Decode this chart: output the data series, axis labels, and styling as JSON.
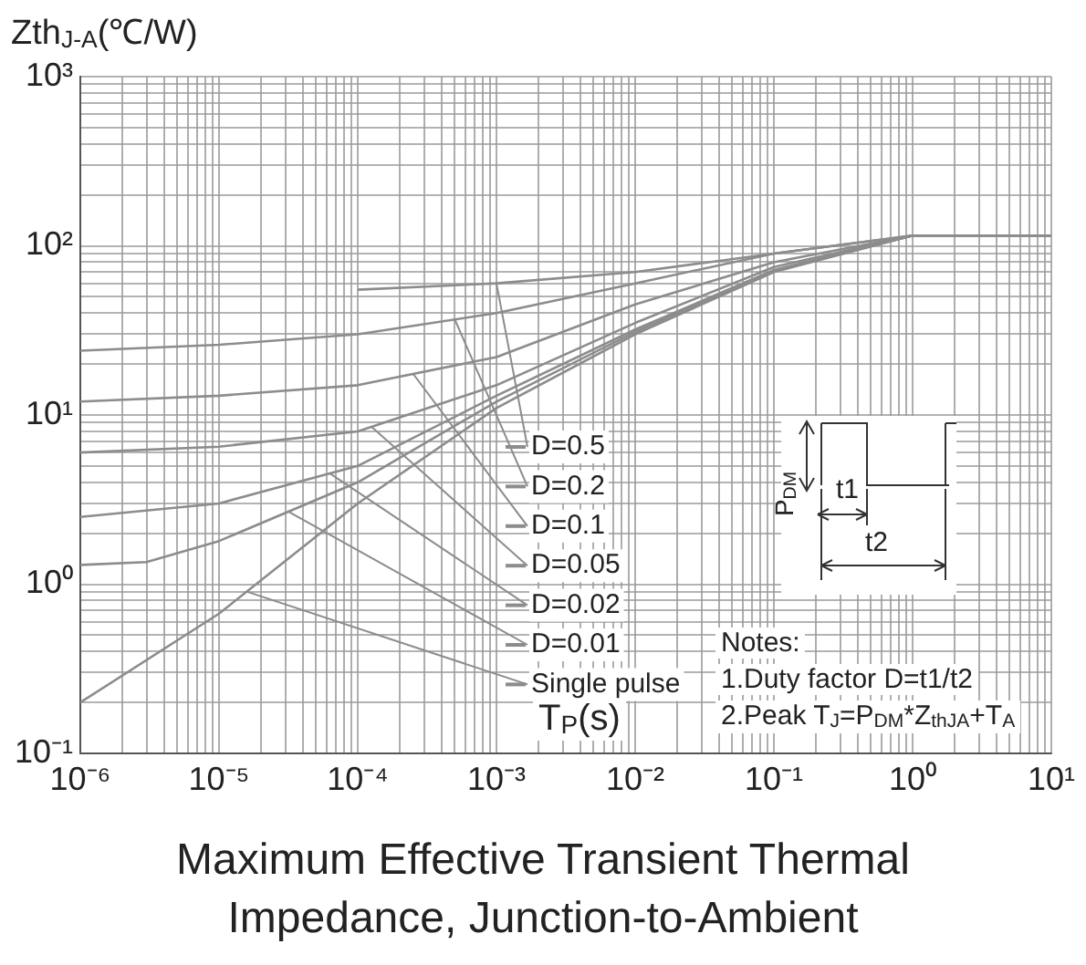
{
  "chart_data": {
    "type": "line",
    "title": "Maximum Effective Transient Thermal Impedance, Junction-to-Ambient",
    "xlabel": "T$_{P}$(s)",
    "ylabel": "Zth$_{J-A}$(℃/W)",
    "log": "xy",
    "grid": true,
    "legend": "bottom",
    "xlim": [
      1e-06,
      10
    ],
    "ylim": [
      0.1,
      1000
    ],
    "xticks": [
      {
        "value": 1e-06,
        "label": "10⁻⁶"
      },
      {
        "value": 2e-06,
        "label": null
      },
      {
        "value": 3e-06,
        "label": null
      },
      {
        "value": 4e-06,
        "label": null
      },
      {
        "value": 5e-06,
        "label": null
      },
      {
        "value": 6e-06,
        "label": null
      },
      {
        "value": 7e-06,
        "label": null
      },
      {
        "value": 8e-06,
        "label": null
      },
      {
        "value": 9e-06,
        "label": null
      },
      {
        "value": 1e-05,
        "label": "10⁻⁵"
      },
      {
        "value": 2e-05,
        "label": null
      },
      {
        "value": 3e-05,
        "label": null
      },
      {
        "value": 4e-05,
        "label": null
      },
      {
        "value": 5e-05,
        "label": null
      },
      {
        "value": 6e-05,
        "label": null
      },
      {
        "value": 7e-05,
        "label": null
      },
      {
        "value": 8e-05,
        "label": null
      },
      {
        "value": 9e-05,
        "label": null
      },
      {
        "value": 0.0001,
        "label": "10⁻⁴"
      },
      {
        "value": 0.0002,
        "label": null
      },
      {
        "value": 0.0003,
        "label": null
      },
      {
        "value": 0.0004,
        "label": null
      },
      {
        "value": 0.0005,
        "label": null
      },
      {
        "value": 0.0006,
        "label": null
      },
      {
        "value": 0.0007,
        "label": null
      },
      {
        "value": 0.0008,
        "label": null
      },
      {
        "value": 0.0009,
        "label": null
      },
      {
        "value": 0.001,
        "label": "10⁻³"
      },
      {
        "value": 0.002,
        "label": null
      },
      {
        "value": 0.003,
        "label": null
      },
      {
        "value": 0.004,
        "label": null
      },
      {
        "value": 0.005,
        "label": null
      },
      {
        "value": 0.006,
        "label": null
      },
      {
        "value": 0.007,
        "label": null
      },
      {
        "value": 0.008,
        "label": null
      },
      {
        "value": 0.009,
        "label": null
      },
      {
        "value": 0.01,
        "label": "10⁻²"
      },
      {
        "value": 0.02,
        "label": null
      },
      {
        "value": 0.03,
        "label": null
      },
      {
        "value": 0.04,
        "label": null
      },
      {
        "value": 0.05,
        "label": null
      },
      {
        "value": 0.06,
        "label": null
      },
      {
        "value": 0.07,
        "label": null
      },
      {
        "value": 0.08,
        "label": null
      },
      {
        "value": 0.09,
        "label": null
      },
      {
        "value": 0.1,
        "label": "10⁻¹"
      },
      {
        "value": 0.2,
        "label": null
      },
      {
        "value": 0.3,
        "label": null
      },
      {
        "value": 0.4,
        "label": null
      },
      {
        "value": 0.5,
        "label": null
      },
      {
        "value": 0.6,
        "label": null
      },
      {
        "value": 0.7,
        "label": null
      },
      {
        "value": 0.8,
        "label": null
      },
      {
        "value": 0.9,
        "label": null
      },
      {
        "value": 1,
        "label": "10⁰"
      },
      {
        "value": 2,
        "label": null
      },
      {
        "value": 3,
        "label": null
      },
      {
        "value": 4,
        "label": null
      },
      {
        "value": 5,
        "label": null
      },
      {
        "value": 6,
        "label": null
      },
      {
        "value": 7,
        "label": null
      },
      {
        "value": 8,
        "label": null
      },
      {
        "value": 9,
        "label": null
      },
      {
        "value": 10,
        "label": "10¹"
      }
    ],
    "yticks": [
      {
        "value": 0.1,
        "label": "10⁻¹"
      },
      {
        "value": 0.2,
        "label": null
      },
      {
        "value": 0.3,
        "label": null
      },
      {
        "value": 0.4,
        "label": null
      },
      {
        "value": 0.5,
        "label": null
      },
      {
        "value": 0.6,
        "label": null
      },
      {
        "value": 0.7,
        "label": null
      },
      {
        "value": 0.8,
        "label": null
      },
      {
        "value": 0.9,
        "label": null
      },
      {
        "value": 1,
        "label": "10⁰"
      },
      {
        "value": 2,
        "label": null
      },
      {
        "value": 3,
        "label": null
      },
      {
        "value": 4,
        "label": null
      },
      {
        "value": 5,
        "label": null
      },
      {
        "value": 6,
        "label": null
      },
      {
        "value": 7,
        "label": null
      },
      {
        "value": 8,
        "label": null
      },
      {
        "value": 9,
        "label": null
      },
      {
        "value": 10,
        "label": "10¹"
      },
      {
        "value": 20,
        "label": null
      },
      {
        "value": 30,
        "label": null
      },
      {
        "value": 40,
        "label": null
      },
      {
        "value": 50,
        "label": null
      },
      {
        "value": 60,
        "label": null
      },
      {
        "value": 70,
        "label": null
      },
      {
        "value": 80,
        "label": null
      },
      {
        "value": 90,
        "label": null
      },
      {
        "value": 100,
        "label": "10²"
      },
      {
        "value": 200,
        "label": null
      },
      {
        "value": 300,
        "label": null
      },
      {
        "value": 400,
        "label": null
      },
      {
        "value": 500,
        "label": null
      },
      {
        "value": 600,
        "label": null
      },
      {
        "value": 700,
        "label": null
      },
      {
        "value": 800,
        "label": null
      },
      {
        "value": 900,
        "label": null
      },
      {
        "value": 1000,
        "label": "10³"
      }
    ],
    "series": [
      {
        "name": "D=0.5",
        "color": "#8c8c8c",
        "x": [
          0.0001,
          0.001,
          0.01,
          0.1,
          1,
          10
        ],
        "values": [
          55,
          60,
          70,
          90,
          115,
          115
        ]
      },
      {
        "name": "D=0.2",
        "color": "#8c8c8c",
        "x": [
          1e-06,
          1e-05,
          0.0001,
          0.001,
          0.01,
          0.1,
          1,
          10
        ],
        "values": [
          24,
          26,
          30,
          40,
          60,
          90,
          115,
          115
        ]
      },
      {
        "name": "D=0.1",
        "color": "#8c8c8c",
        "x": [
          1e-06,
          1e-05,
          0.0001,
          0.001,
          0.01,
          0.1,
          1,
          10
        ],
        "values": [
          12,
          13,
          15,
          22,
          45,
          80,
          115,
          115
        ]
      },
      {
        "name": "D=0.05",
        "color": "#8c8c8c",
        "x": [
          1e-06,
          1e-05,
          0.0001,
          0.001,
          0.01,
          0.1,
          1,
          10
        ],
        "values": [
          6,
          6.5,
          8,
          15,
          35,
          75,
          115,
          115
        ]
      },
      {
        "name": "D=0.02",
        "color": "#8c8c8c",
        "x": [
          1e-06,
          1e-05,
          0.0001,
          0.001,
          0.01,
          0.1,
          1,
          10
        ],
        "values": [
          2.5,
          3,
          5,
          13,
          32,
          72,
          115,
          115
        ]
      },
      {
        "name": "D=0.01",
        "color": "#8c8c8c",
        "x": [
          1e-06,
          3e-06,
          1e-05,
          0.0001,
          0.001,
          0.01,
          0.1,
          1,
          10
        ],
        "values": [
          1.3,
          1.35,
          1.8,
          4,
          12,
          31,
          71,
          115,
          115
        ]
      },
      {
        "name": "Single pulse",
        "color": "#8c8c8c",
        "x": [
          1e-06,
          1e-05,
          0.0001,
          0.001,
          0.01,
          0.1,
          1,
          10
        ],
        "values": [
          0.2,
          0.67,
          3,
          11,
          30,
          70,
          115,
          115
        ]
      }
    ],
    "annotations": [
      "Notes:",
      "1.Duty factor D=t1/t2",
      "2.Peak T$_{J}$=P$_{DM}$*Z$_{thJA}$+T$_{A}$",
      "t1",
      "t2",
      "P$_{DM}$"
    ]
  }
}
